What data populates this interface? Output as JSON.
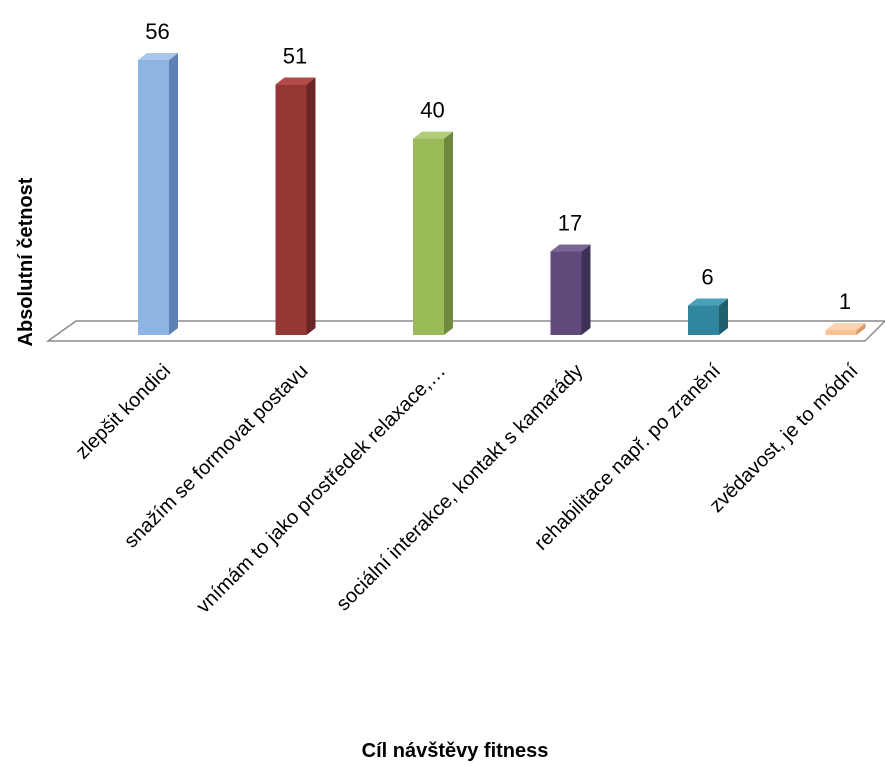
{
  "chart_data": {
    "type": "bar",
    "style": "3d-column",
    "xlabel": "Cíl  návštěvy fitness",
    "ylabel": "Absolutní  četnost",
    "categories": [
      "zlepšit kondici",
      "snažím se formovat postavu",
      "vnímám to jako prostředek relaxace,…",
      "sociální interakce, kontakt s kamarády",
      "rehabilitace např. po zranění",
      "zvědavost, je to módní"
    ],
    "values": [
      56,
      51,
      40,
      17,
      6,
      1
    ],
    "data_labels": [
      "56",
      "51",
      "40",
      "17",
      "6",
      "1"
    ],
    "colors": [
      {
        "front": "#8eb4e3",
        "side": "#5f82b5",
        "top": "#a9c6ec"
      },
      {
        "front": "#953735",
        "side": "#6b2524",
        "top": "#b24a47"
      },
      {
        "front": "#9bbb59",
        "side": "#6f8a3c",
        "top": "#b2cd7a"
      },
      {
        "front": "#604a7b",
        "side": "#3f3055",
        "top": "#7b6595"
      },
      {
        "front": "#31859c",
        "side": "#1f5f70",
        "top": "#4aa0b8"
      },
      {
        "front": "#fac090",
        "side": "#d69a66",
        "top": "#fcd3b0"
      }
    ],
    "ylim": [
      0,
      56
    ],
    "grid": false,
    "legend": "none"
  }
}
